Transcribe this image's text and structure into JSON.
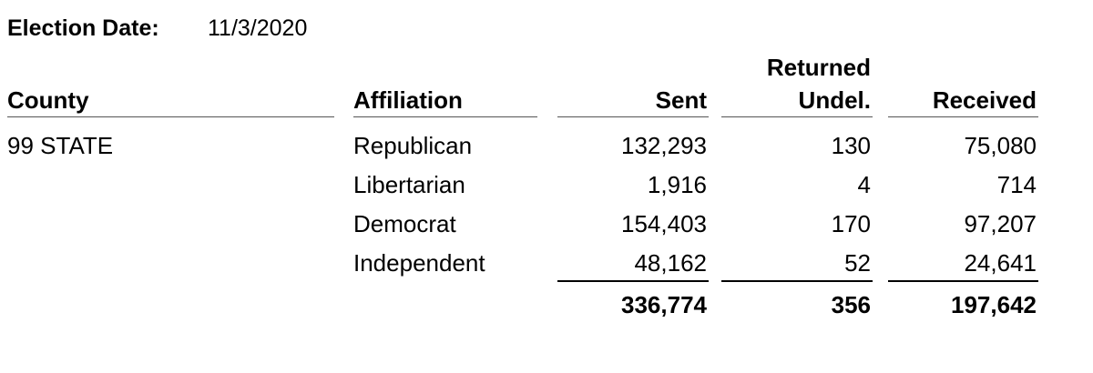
{
  "header": {
    "label": "Election Date:",
    "date": "11/3/2020"
  },
  "table": {
    "columns": [
      [
        "County"
      ],
      [
        "Affiliation"
      ],
      [
        "Sent"
      ],
      [
        "Returned",
        "Undel."
      ],
      [
        "Received"
      ]
    ],
    "county": "99 STATE",
    "rows": [
      [
        "Republican",
        "132,293",
        "130",
        "75,080"
      ],
      [
        "Libertarian",
        "1,916",
        "4",
        "714"
      ],
      [
        "Democrat",
        "154,403",
        "170",
        "97,207"
      ],
      [
        "Independent",
        "48,162",
        "52",
        "24,641"
      ]
    ],
    "totals": [
      "336,774",
      "356",
      "197,642"
    ]
  }
}
